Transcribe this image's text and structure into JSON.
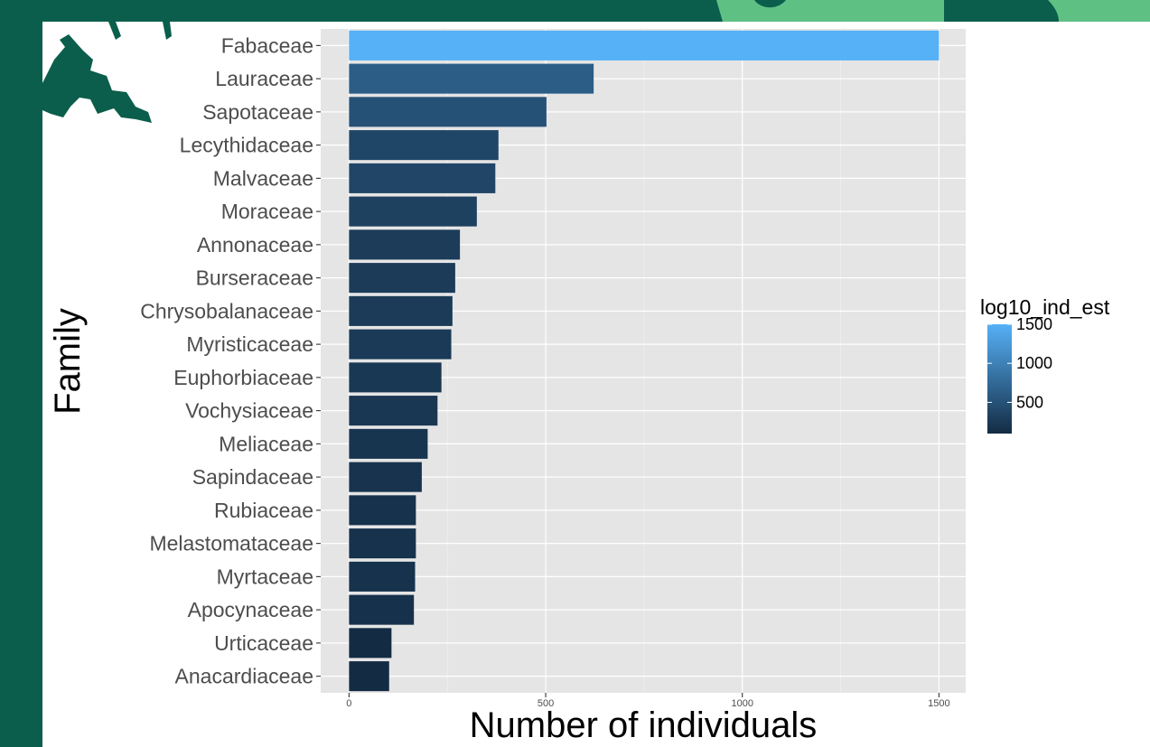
{
  "theme": {
    "slide_green": "#0b5e4c",
    "slide_light_green": "#5fc084",
    "panel_bg": "#e5e5e5",
    "grid_major": "#ffffff",
    "grid_minor": "#f2f2f2",
    "bar_low": "#132b43",
    "bar_high": "#56b1f7"
  },
  "chart_data": {
    "type": "bar",
    "orientation": "horizontal",
    "title": "",
    "xlabel": "Number of individuals",
    "ylabel": "Family",
    "xlim": [
      -72,
      1568
    ],
    "xticks": [
      0,
      500,
      1000,
      1500
    ],
    "xtick_labels": [
      "0",
      "500",
      "1000",
      "1500"
    ],
    "grid": true,
    "legend": {
      "title": "log10_ind_est",
      "position": "right",
      "type": "colorbar",
      "range": [
        100,
        1500
      ],
      "ticks": [
        1500,
        1000,
        500
      ],
      "tick_labels": [
        "1500",
        "1000",
        "500"
      ]
    },
    "categories": [
      "Fabaceae",
      "Lauraceae",
      "Sapotaceae",
      "Lecythidaceae",
      "Malvaceae",
      "Moraceae",
      "Annonaceae",
      "Burseraceae",
      "Chrysobalanaceae",
      "Myristicaceae",
      "Euphorbiaceae",
      "Vochysiaceae",
      "Meliaceae",
      "Sapindaceae",
      "Rubiaceae",
      "Melastomataceae",
      "Myrtaceae",
      "Apocynaceae",
      "Urticaceae",
      "Anacardiaceae"
    ],
    "values": [
      1500,
      622,
      502,
      380,
      372,
      325,
      282,
      270,
      263,
      260,
      235,
      225,
      200,
      185,
      170,
      170,
      168,
      165,
      108,
      102
    ]
  }
}
